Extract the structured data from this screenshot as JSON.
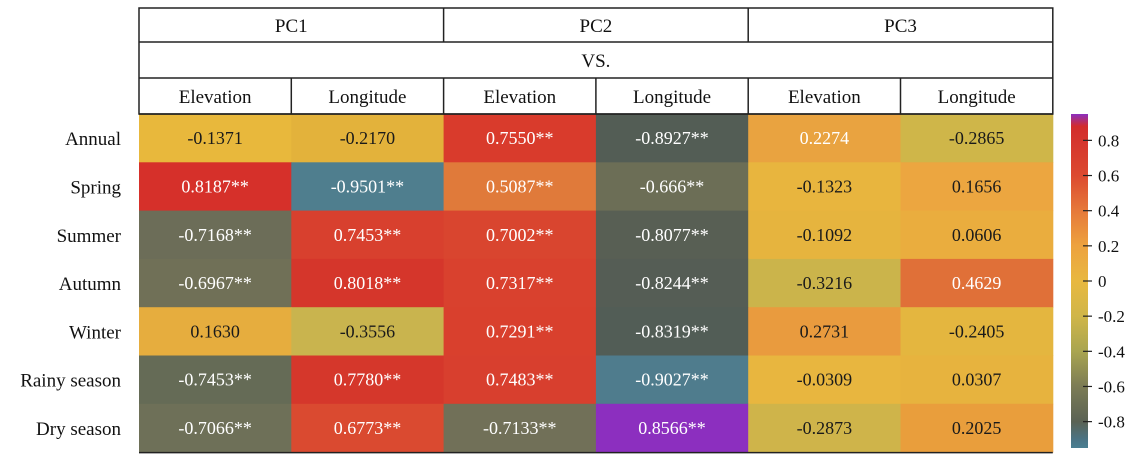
{
  "chart_data": {
    "type": "heatmap",
    "title": "",
    "header_groups": [
      "PC1",
      "PC2",
      "PC3"
    ],
    "header_sub": "VS.",
    "columns": [
      "Elevation",
      "Longitude",
      "Elevation",
      "Longitude",
      "Elevation",
      "Longitude"
    ],
    "rows": [
      "Annual",
      "Spring",
      "Summer",
      "Autumn",
      "Winter",
      "Rainy season",
      "Dry season"
    ],
    "values": [
      [
        -0.1371,
        -0.217,
        0.755,
        -0.8927,
        0.2274,
        -0.2865
      ],
      [
        0.8187,
        -0.9501,
        0.5087,
        -0.666,
        -0.1323,
        0.1656
      ],
      [
        -0.7168,
        0.7453,
        0.7002,
        -0.8077,
        -0.1092,
        0.0606
      ],
      [
        -0.6967,
        0.8018,
        0.7317,
        -0.8244,
        -0.3216,
        0.4629
      ],
      [
        0.163,
        -0.3556,
        0.7291,
        -0.8319,
        0.2731,
        -0.2405
      ],
      [
        -0.7453,
        0.778,
        0.7483,
        -0.9027,
        -0.0309,
        0.0307
      ],
      [
        -0.7066,
        0.6773,
        -0.7133,
        0.8566,
        -0.2873,
        0.2025
      ]
    ],
    "labels": [
      [
        "-0.1371",
        "-0.2170",
        "0.7550**",
        "-0.8927**",
        "0.2274",
        "-0.2865"
      ],
      [
        "0.8187**",
        "-0.9501**",
        "0.5087**",
        "-0.666**",
        "-0.1323",
        "0.1656"
      ],
      [
        "-0.7168**",
        "0.7453**",
        "0.7002**",
        "-0.8077**",
        "-0.1092",
        "0.0606"
      ],
      [
        "-0.6967**",
        "0.8018**",
        "0.7317**",
        "-0.8244**",
        "-0.3216",
        "0.4629"
      ],
      [
        "0.1630",
        "-0.3556",
        "0.7291**",
        "-0.8319**",
        "0.2731",
        "-0.2405"
      ],
      [
        "-0.7453**",
        "0.7780**",
        "0.7483**",
        "-0.9027**",
        "-0.0309",
        "0.0307"
      ],
      [
        "-0.7066**",
        "0.6773**",
        "-0.7133**",
        "0.8566**",
        "-0.2873",
        "0.2025"
      ]
    ],
    "colors": [
      [
        "#e8b83c",
        "#e3b23b",
        "#d93b2c",
        "#535d55",
        "#e9a340",
        "#cfb649"
      ],
      [
        "#d6302a",
        "#4f7e8e",
        "#e07a3a",
        "#6c6e56",
        "#e8b53e",
        "#eca640"
      ],
      [
        "#6c6d58",
        "#d8402e",
        "#d9452f",
        "#585f54",
        "#e6b43e",
        "#eaad3e"
      ],
      [
        "#707057",
        "#d5362b",
        "#d9412e",
        "#555d55",
        "#cbb44b",
        "#e07038"
      ],
      [
        "#e6ad3e",
        "#c9b44e",
        "#d9402d",
        "#525d56",
        "#e99b3e",
        "#e4b63f"
      ],
      [
        "#656b56",
        "#d5372b",
        "#d83f2e",
        "#4f7c8d",
        "#e8b63f",
        "#e7b33e"
      ],
      [
        "#6e7058",
        "#da4a30",
        "#717058",
        "#8c2fbf",
        "#cfb44a",
        "#e99e3c"
      ]
    ],
    "text_colors": [
      [
        "#1a1a1a",
        "#1a1a1a",
        "#ffffff",
        "#ffffff",
        "#ffffff",
        "#1a1a1a"
      ],
      [
        "#ffffff",
        "#ffffff",
        "#ffffff",
        "#ffffff",
        "#1a1a1a",
        "#1a1a1a"
      ],
      [
        "#ffffff",
        "#ffffff",
        "#ffffff",
        "#ffffff",
        "#1a1a1a",
        "#1a1a1a"
      ],
      [
        "#ffffff",
        "#ffffff",
        "#ffffff",
        "#ffffff",
        "#1a1a1a",
        "#ffffff"
      ],
      [
        "#1a1a1a",
        "#1a1a1a",
        "#ffffff",
        "#ffffff",
        "#1a1a1a",
        "#1a1a1a"
      ],
      [
        "#ffffff",
        "#ffffff",
        "#ffffff",
        "#ffffff",
        "#1a1a1a",
        "#1a1a1a"
      ],
      [
        "#ffffff",
        "#ffffff",
        "#ffffff",
        "#ffffff",
        "#1a1a1a",
        "#1a1a1a"
      ]
    ],
    "colorbar": {
      "range": [
        -0.95,
        0.95
      ],
      "ticks": [
        0.8,
        0.6,
        0.4,
        0.2,
        0,
        -0.2,
        -0.4,
        -0.6,
        -0.8
      ],
      "tick_labels": [
        "0.8",
        "0.6",
        "0.4",
        "0.2",
        "0",
        "-0.2",
        "-0.4",
        "-0.6",
        "-0.8"
      ],
      "stops": [
        {
          "value": 0.95,
          "color": "#8b2fc0"
        },
        {
          "value": 0.88,
          "color": "#d22c2c"
        },
        {
          "value": 0.6,
          "color": "#dc4a30"
        },
        {
          "value": 0.4,
          "color": "#e6793a"
        },
        {
          "value": 0.2,
          "color": "#eda23f"
        },
        {
          "value": 0.0,
          "color": "#e8b840"
        },
        {
          "value": -0.2,
          "color": "#d0b648"
        },
        {
          "value": -0.4,
          "color": "#a9a550"
        },
        {
          "value": -0.6,
          "color": "#7c7c55"
        },
        {
          "value": -0.8,
          "color": "#5a6254"
        },
        {
          "value": -0.9,
          "color": "#4b7384"
        },
        {
          "value": -0.95,
          "color": "#4a7f92"
        }
      ]
    }
  }
}
